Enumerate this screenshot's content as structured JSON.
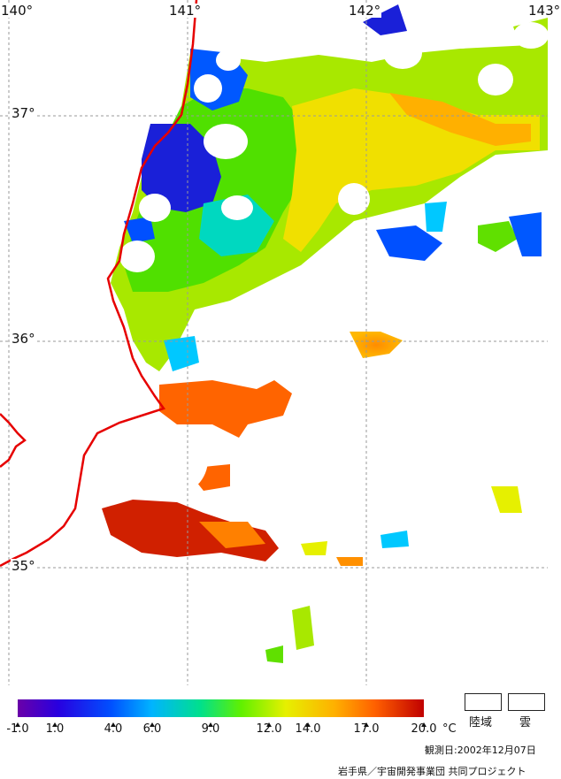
{
  "map": {
    "lon_labels": [
      {
        "text": "140°",
        "value": 140
      },
      {
        "text": "141°",
        "value": 141
      },
      {
        "text": "142°",
        "value": 142
      },
      {
        "text": "143°",
        "value": 143
      }
    ],
    "lat_labels": [
      {
        "text": "37°",
        "value": 37
      },
      {
        "text": "36°",
        "value": 36
      },
      {
        "text": "35°",
        "value": 35
      }
    ],
    "coastline_color": "#e60000",
    "grid_color": "#999999"
  },
  "legend": {
    "ticks": [
      "-1.0",
      "1.0",
      "4.0",
      "6.0",
      "9.0",
      "12.0",
      "14.0",
      "17.0",
      "20.0"
    ],
    "unit": "°C",
    "colors": [
      "#6a00a8",
      "#2800e0",
      "#0050ff",
      "#00b4ff",
      "#00e08c",
      "#60f000",
      "#e6f000",
      "#ffb000",
      "#ff6000",
      "#c00000"
    ],
    "land_label": "陸域",
    "cloud_label": "雲"
  },
  "footer": {
    "observation_date": "観測日:2002年12月07日",
    "credit": "岩手県／宇宙開発事業団 共同プロジェクト"
  }
}
